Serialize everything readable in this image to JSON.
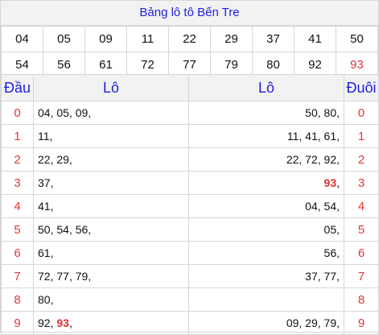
{
  "title": "Bảng lô tô Bến Tre",
  "numbers": [
    [
      "04",
      "05",
      "09",
      "11",
      "22",
      "29",
      "37",
      "41",
      "50"
    ],
    [
      "54",
      "56",
      "61",
      "72",
      "77",
      "79",
      "80",
      "92",
      "93"
    ]
  ],
  "highlight_number": "93",
  "headers": {
    "dau": "Đầu",
    "lo_left": "Lô",
    "lo_right": "Lô",
    "duoi": "Đuôi"
  },
  "rows": [
    {
      "dau": "0",
      "left": [
        "04",
        "05",
        "09"
      ],
      "right": [
        "50",
        "80"
      ],
      "duoi": "0"
    },
    {
      "dau": "1",
      "left": [
        "11"
      ],
      "right": [
        "11",
        "41",
        "61"
      ],
      "duoi": "1"
    },
    {
      "dau": "2",
      "left": [
        "22",
        "29"
      ],
      "right": [
        "22",
        "72",
        "92"
      ],
      "duoi": "2"
    },
    {
      "dau": "3",
      "left": [
        "37"
      ],
      "right": [
        "93"
      ],
      "duoi": "3"
    },
    {
      "dau": "4",
      "left": [
        "41"
      ],
      "right": [
        "04",
        "54"
      ],
      "duoi": "4"
    },
    {
      "dau": "5",
      "left": [
        "50",
        "54",
        "56"
      ],
      "right": [
        "05"
      ],
      "duoi": "5"
    },
    {
      "dau": "6",
      "left": [
        "61"
      ],
      "right": [
        "56"
      ],
      "duoi": "6"
    },
    {
      "dau": "7",
      "left": [
        "72",
        "77",
        "79"
      ],
      "right": [
        "37",
        "77"
      ],
      "duoi": "7"
    },
    {
      "dau": "8",
      "left": [
        "80"
      ],
      "right": [],
      "duoi": "8"
    },
    {
      "dau": "9",
      "left": [
        "92",
        "93"
      ],
      "right": [
        "09",
        "29",
        "79"
      ],
      "duoi": "9"
    }
  ],
  "colors": {
    "header_text": "#1e1ee6",
    "index_red": "#e53535",
    "highlight_red": "#e03030",
    "header_bg": "#f2f2f2"
  }
}
